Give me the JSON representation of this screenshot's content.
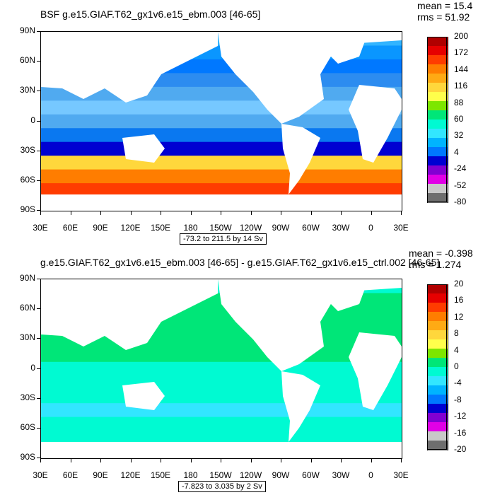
{
  "panels": [
    {
      "title": "BSF g.e15.GIAF.T62_gx1v6.e15_ebm.003 [46-65]",
      "mean": "mean = 15.4",
      "rms": "rms = 51.92",
      "range_note": "-73.2 to 211.5 by 14 Sv",
      "lat_labels": [
        "90N",
        "60N",
        "30N",
        "0",
        "30S",
        "60S",
        "90S"
      ],
      "lon_labels": [
        "30E",
        "60E",
        "90E",
        "120E",
        "150E",
        "180",
        "150W",
        "120W",
        "90W",
        "60W",
        "30W",
        "0",
        "30E"
      ],
      "legend": {
        "labels": [
          "200",
          "172",
          "144",
          "116",
          "88",
          "60",
          "32",
          "4",
          "-24",
          "-52",
          "-80"
        ],
        "colors": [
          "#b00000",
          "#e60000",
          "#ff3c00",
          "#ff7d00",
          "#ffaa14",
          "#ffd73c",
          "#ffff4b",
          "#7de600",
          "#00e678",
          "#00fad2",
          "#32e6ff",
          "#00b4ff",
          "#0078ff",
          "#0000d2",
          "#8200d2",
          "#e100e6",
          "#c8c8c8",
          "#6e6e6e"
        ]
      },
      "ocean_bands": [
        "#32b4ff",
        "#0a96ff",
        "#0078ff",
        "#2c8cf0",
        "#50aaf0",
        "#76c8ff",
        "#50aaf0",
        "#0a78f0",
        "#0000d2",
        "#ffd73c",
        "#ff7d00",
        "#ff3c00",
        "#e60000"
      ]
    },
    {
      "title": "g.e15.GIAF.T62_gx1v6.e15_ebm.003 [46-65] - g.e15.GIAF.T62_gx1v6.e15_ctrl.002 [46-65]",
      "mean": "mean = -0.398",
      "rms": "rms = 1.274",
      "range_note": "-7.823 to 3.035 by 2 Sv",
      "lat_labels": [
        "90N",
        "60N",
        "30N",
        "0",
        "30S",
        "60S",
        "90S"
      ],
      "lon_labels": [
        "30E",
        "60E",
        "90E",
        "120E",
        "150E",
        "180",
        "150W",
        "120W",
        "90W",
        "60W",
        "30W",
        "0",
        "30E"
      ],
      "legend": {
        "labels": [
          "20",
          "16",
          "12",
          "8",
          "4",
          "0",
          "-4",
          "-8",
          "-12",
          "-16",
          "-20"
        ],
        "colors": [
          "#b00000",
          "#e60000",
          "#ff3c00",
          "#ff7d00",
          "#ffaa14",
          "#ffd73c",
          "#ffff4b",
          "#7de600",
          "#00e678",
          "#00fad2",
          "#32e6ff",
          "#00b4ff",
          "#0078ff",
          "#0000d2",
          "#8200d2",
          "#e100e6",
          "#c8c8c8",
          "#6e6e6e"
        ]
      },
      "ocean_bands": [
        "#00fad2",
        "#00e678",
        "#00e678",
        "#00e678",
        "#00e678",
        "#00e678",
        "#00fad2",
        "#00fad2",
        "#00fad2",
        "#32e6ff",
        "#00fad2",
        "#00fad2",
        "#00fad2"
      ]
    }
  ]
}
